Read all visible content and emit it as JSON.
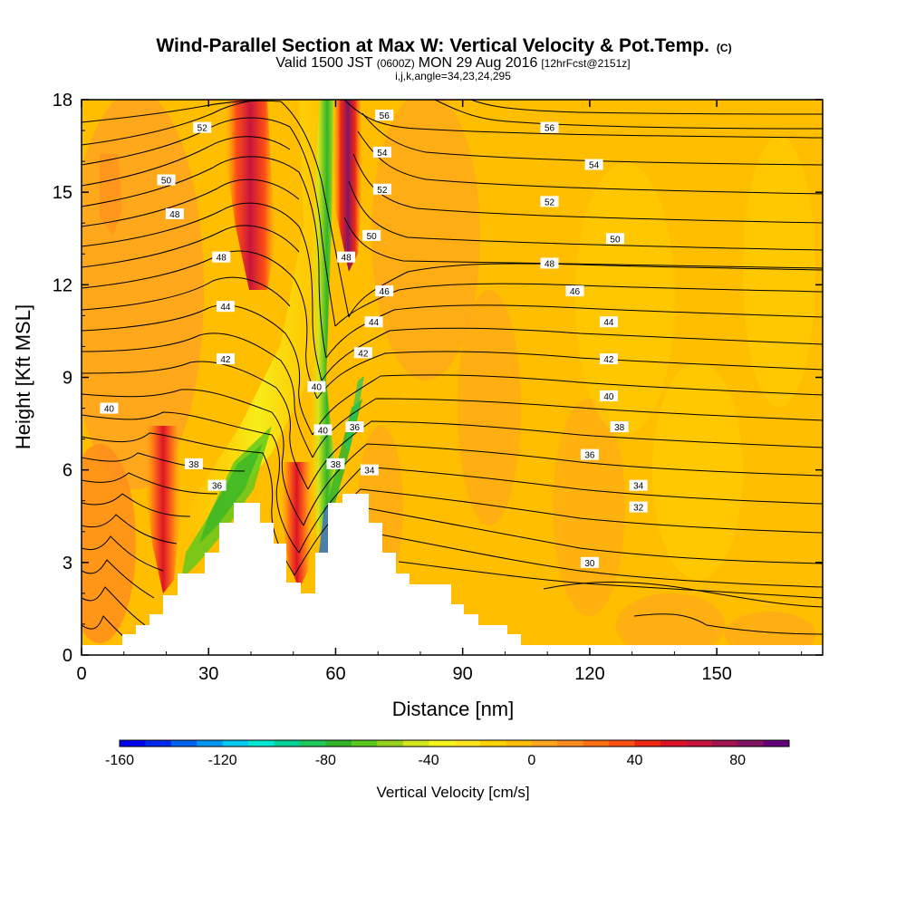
{
  "title": {
    "main": "Wind-Parallel Section at Max W: Vertical Velocity & Pot.Temp.",
    "copyright": "(C)",
    "valid_a": "Valid 1500 JST",
    "valid_b": "(0600Z)",
    "valid_c": "MON 29 Aug 2016",
    "valid_d": "[12hrFcst@2151z]",
    "params": "i,j,k,angle=34,23,24,295"
  },
  "chart_data": {
    "type": "heatmap",
    "xlabel": "Distance [nm]",
    "ylabel": "Height [Kft MSL]",
    "xlim": [
      0,
      175
    ],
    "ylim": [
      0,
      18
    ],
    "x_ticks": [
      "0",
      "30",
      "60",
      "90",
      "120",
      "150"
    ],
    "y_ticks": [
      "0",
      "3",
      "6",
      "9",
      "12",
      "15",
      "18"
    ],
    "colorbar": {
      "label": "Vertical Velocity [cm/s]",
      "range": [
        -160,
        100
      ],
      "ticks": [
        "-160",
        "-120",
        "-80",
        "-40",
        "0",
        "40",
        "80"
      ],
      "colors": [
        "#0000f0",
        "#0028f0",
        "#0064f0",
        "#0096f0",
        "#00c8f0",
        "#00e6d2",
        "#00d296",
        "#1ec85a",
        "#32b428",
        "#5ac81e",
        "#96d21e",
        "#d2e61e",
        "#f5f51e",
        "#ffe61e",
        "#ffd200",
        "#ffbe00",
        "#ffa51e",
        "#ff8c1e",
        "#ff6e14",
        "#ff5014",
        "#f02814",
        "#dc1428",
        "#c8143c",
        "#a01450",
        "#821464",
        "#640078"
      ]
    },
    "contour_field": "Potential temperature",
    "contour_labels": [
      {
        "v": "52",
        "x": 28.5,
        "y": 17.1
      },
      {
        "v": "50",
        "x": 20,
        "y": 15.4
      },
      {
        "v": "48",
        "x": 22,
        "y": 14.3
      },
      {
        "v": "48",
        "x": 33,
        "y": 12.9
      },
      {
        "v": "44",
        "x": 34,
        "y": 11.3
      },
      {
        "v": "42",
        "x": 34,
        "y": 9.6
      },
      {
        "v": "40",
        "x": 6.5,
        "y": 8.0
      },
      {
        "v": "38",
        "x": 26.5,
        "y": 6.2
      },
      {
        "v": "36",
        "x": 32,
        "y": 5.5
      },
      {
        "v": "40",
        "x": 55.5,
        "y": 8.7
      },
      {
        "v": "40",
        "x": 57,
        "y": 7.3
      },
      {
        "v": "38",
        "x": 60,
        "y": 6.2
      },
      {
        "v": "36",
        "x": 64.5,
        "y": 7.4
      },
      {
        "v": "34",
        "x": 68,
        "y": 6.0
      },
      {
        "v": "56",
        "x": 71.5,
        "y": 17.5
      },
      {
        "v": "54",
        "x": 71,
        "y": 16.3
      },
      {
        "v": "52",
        "x": 71,
        "y": 15.1
      },
      {
        "v": "50",
        "x": 68.5,
        "y": 13.6
      },
      {
        "v": "48",
        "x": 62.5,
        "y": 12.9
      },
      {
        "v": "46",
        "x": 71.5,
        "y": 11.8
      },
      {
        "v": "44",
        "x": 69,
        "y": 10.8
      },
      {
        "v": "42",
        "x": 66.5,
        "y": 9.8
      },
      {
        "v": "56",
        "x": 110.5,
        "y": 17.1
      },
      {
        "v": "54",
        "x": 121,
        "y": 15.9
      },
      {
        "v": "52",
        "x": 110.5,
        "y": 14.7
      },
      {
        "v": "50",
        "x": 126,
        "y": 13.5
      },
      {
        "v": "48",
        "x": 110.5,
        "y": 12.7
      },
      {
        "v": "46",
        "x": 116.5,
        "y": 11.8
      },
      {
        "v": "44",
        "x": 124.5,
        "y": 10.8
      },
      {
        "v": "42",
        "x": 124.5,
        "y": 9.6
      },
      {
        "v": "40",
        "x": 124.5,
        "y": 8.4
      },
      {
        "v": "38",
        "x": 127,
        "y": 7.4
      },
      {
        "v": "36",
        "x": 120,
        "y": 6.5
      },
      {
        "v": "34",
        "x": 131.5,
        "y": 5.5
      },
      {
        "v": "32",
        "x": 131.5,
        "y": 4.8
      },
      {
        "v": "30",
        "x": 120,
        "y": 3.0
      }
    ]
  }
}
